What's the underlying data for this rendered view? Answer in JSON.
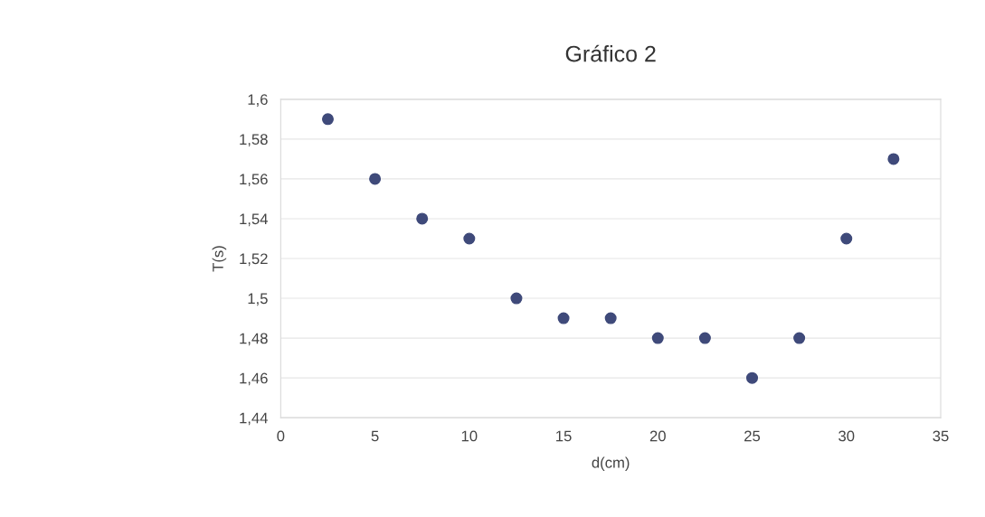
{
  "chart_data": {
    "type": "scatter",
    "title": "Gráfico 2",
    "xlabel": "d(cm)",
    "ylabel": "T(s)",
    "x": [
      2.5,
      5,
      7.5,
      10,
      12.5,
      15,
      17.5,
      20,
      22.5,
      25,
      27.5,
      30,
      32.5
    ],
    "series": [
      {
        "color": "#3f4a7a",
        "values": [
          1.59,
          1.56,
          1.54,
          1.53,
          1.5,
          1.49,
          1.49,
          1.48,
          1.48,
          1.46,
          1.48,
          1.53,
          1.57
        ]
      }
    ],
    "xlim": [
      0,
      35
    ],
    "xticks": [
      0,
      5,
      10,
      15,
      20,
      25,
      30,
      35
    ],
    "ylim": [
      1.44,
      1.6
    ],
    "yticks": [
      {
        "value": 1.44,
        "label": "1,44"
      },
      {
        "value": 1.46,
        "label": "1,46"
      },
      {
        "value": 1.48,
        "label": "1,48"
      },
      {
        "value": 1.5,
        "label": "1,5"
      },
      {
        "value": 1.52,
        "label": "1,52"
      },
      {
        "value": 1.54,
        "label": "1,54"
      },
      {
        "value": 1.56,
        "label": "1,56"
      },
      {
        "value": 1.58,
        "label": "1,58"
      },
      {
        "value": 1.6,
        "label": "1,6"
      }
    ],
    "grid": "y",
    "marker": "circle",
    "legend": false
  }
}
